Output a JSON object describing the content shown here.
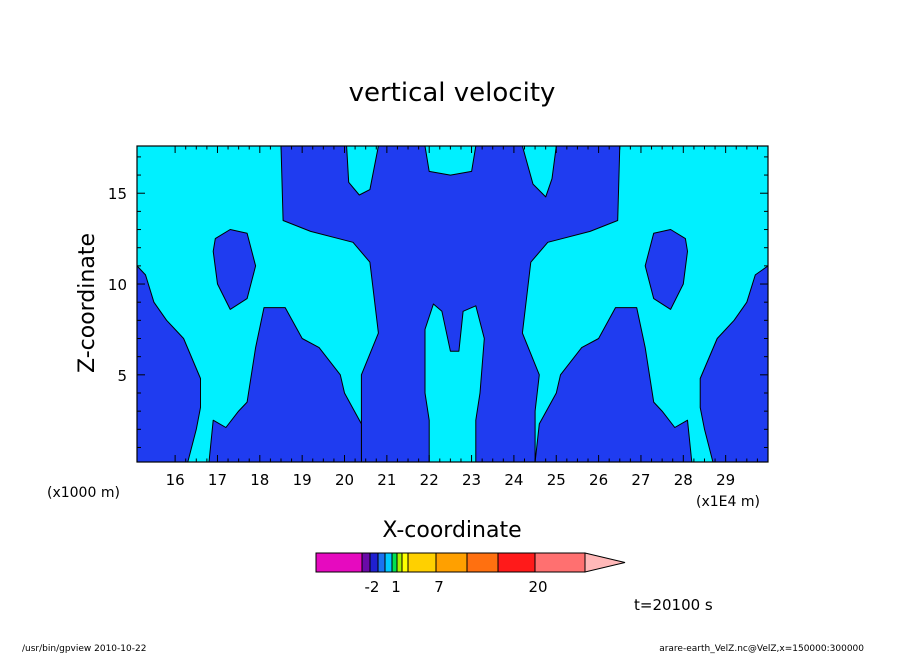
{
  "chart_data": {
    "type": "heatmap",
    "title": "vertical velocity",
    "xlabel": "X-coordinate",
    "ylabel": "Z-coordinate",
    "x_scale_note_left": "(x1000 m)",
    "x_scale_note_right": "(x1E4 m)",
    "xlim": [
      15.1,
      30.0
    ],
    "ylim": [
      0.2,
      17.6
    ],
    "x_ticks": [
      "16",
      "17",
      "18",
      "19",
      "20",
      "21",
      "22",
      "23",
      "24",
      "25",
      "26",
      "27",
      "28",
      "29"
    ],
    "y_ticks": [
      "5",
      "10",
      "15"
    ],
    "contour_levels": [
      {
        "bound": "< -2",
        "color": "#e600b4"
      },
      {
        "bound": "-2",
        "color": "#1f3cf0"
      },
      {
        "bound": "0",
        "color": "#00f0ff"
      },
      {
        "bound": "1",
        "color": "#7dff00"
      },
      {
        "bound": "7",
        "color": "#ff9900"
      },
      {
        "bound": "20",
        "color": "#ff7373"
      }
    ],
    "colorbar": {
      "labels": [
        "-2",
        "1",
        "7",
        "20"
      ],
      "segments": [
        "#e60abf",
        "#6a0aa8",
        "#2020d0",
        "#1a72f0",
        "#00c8ff",
        "#00e050",
        "#a8f000",
        "#ffff00",
        "#ffd000",
        "#ffa000",
        "#ff7010",
        "#ff1a1a",
        "#ff7070"
      ],
      "arrow_color": "#ffb8b8"
    },
    "fields": {
      "background": "#00f0ff",
      "negative": "#1f3cf0"
    },
    "time_label": "t=20100 s"
  },
  "footer": {
    "left": "/usr/bin/gpview   2010-10-22",
    "right": "arare-earth_VelZ.nc@VelZ,x=150000:300000"
  }
}
